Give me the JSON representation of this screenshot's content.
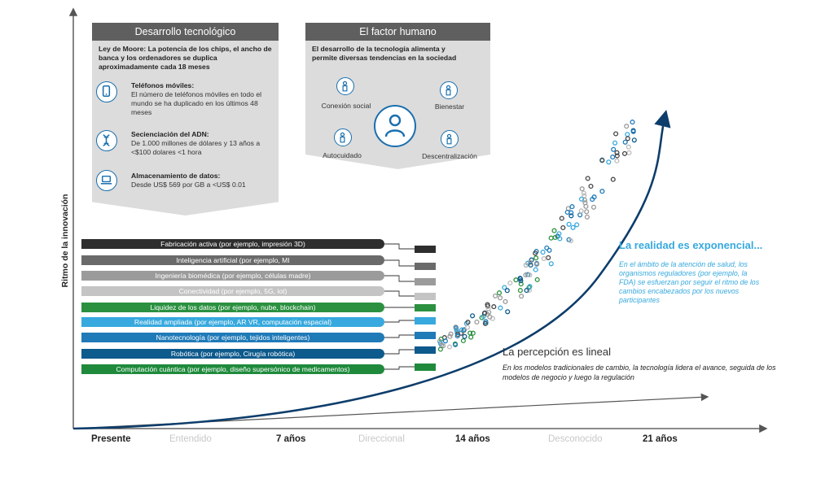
{
  "y_axis_label": "Ritmo de la innovación",
  "x_axis_labels": [
    "Presente",
    "Entendido",
    "7 años",
    "Direccional",
    "14 años",
    "Desconocido",
    "21 años"
  ],
  "panel_tech": {
    "title": "Desarrollo tecnológico",
    "intro": "Ley de Moore: La potencia de los chips, el ancho de banca y los ordenadores se duplica aproximadamente cada 18 meses",
    "items": [
      {
        "icon": "mobile-phone-icon",
        "title": "Teléfonos móviles:",
        "text": "El número de teléfonos móviles en todo el mundo se ha duplicado en los últimos 48 meses"
      },
      {
        "icon": "dna-icon",
        "title": "Secienciación del ADN:",
        "text": "De 1.000 millones de dólares y 13 años a <$100 dolares <1 hora"
      },
      {
        "icon": "laptop-icon",
        "title": "Almacenamiento de datos:",
        "text": "Desde US$ 569 por GB a <US$ 0.01"
      }
    ]
  },
  "panel_human": {
    "title": "El factor humano",
    "intro": "El desarrollo de la tecnología alimenta y permite diversas tendencias en la sociedad",
    "labels": {
      "social": "Conexión social",
      "wellbeing": "Bienestar",
      "selfcare": "Autocuidado",
      "decentral": "Descentralización"
    }
  },
  "bars": [
    {
      "label": "Fabricación activa (por ejemplo, impresión 3D)",
      "color": "#2e2e2e"
    },
    {
      "label": "Inteligencia artificial (por ejemplo, MI",
      "color": "#6a6a6a"
    },
    {
      "label": "Ingeniería biomédica (por ejemplo, células madre)",
      "color": "#9b9b9b"
    },
    {
      "label": "Conectividad (por ejemplo, 5G, iot)",
      "color": "#c4c4c4"
    },
    {
      "label": "Liquidez de los datos (por ejemplo, nube, blockchain)",
      "color": "#2b9140"
    },
    {
      "label": "Realidad ampliada (por ejemplo, AR VR, computación espacial)",
      "color": "#37a9de"
    },
    {
      "label": "Nanotecnología (por ejemplo, tejidos inteligentes)",
      "color": "#1f7ab8"
    },
    {
      "label": "Robótica (por ejemplo, Cirugía robótica)",
      "color": "#0d5a8c"
    },
    {
      "label": "Computación cuántica (por ejemplo, diseño supersónico de medicamentos)",
      "color": "#1f8a3c"
    }
  ],
  "exponential": {
    "title": "La realidad es exponencial...",
    "text": "En el ámbito de la atención de salud, los organismos reguladores (por ejemplo, la FDA) se esfuerzan por seguir el ritmo de los cambios encabezados por los nuevos participantes"
  },
  "linear": {
    "title": "La percepción es lineal",
    "text": "En los modelos tradicionales de cambio, la tecnología lidera el avance, seguida de los modelos de negocio y luego la regulación"
  },
  "colors": {
    "accent_blue": "#1a6fae",
    "light_blue": "#37a9de",
    "dark_navy": "#0d3d6b"
  }
}
